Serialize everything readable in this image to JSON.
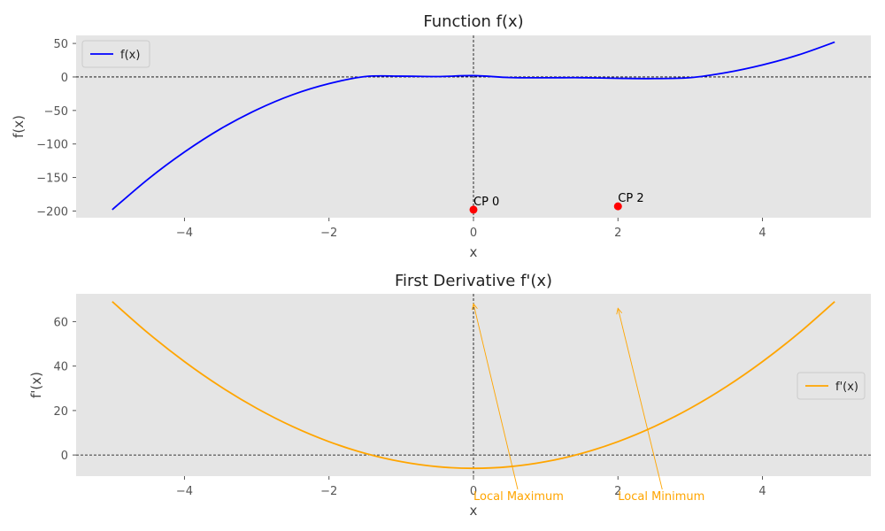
{
  "chart_data": [
    {
      "type": "line",
      "title": "Function f(x)",
      "xlabel": "x",
      "ylabel": "f(x)",
      "xlim": [
        -5.5,
        5.5
      ],
      "ylim": [
        -210,
        62
      ],
      "xticks": [
        -4,
        -2,
        0,
        2,
        4
      ],
      "xtick_labels": [
        "−4",
        "−2",
        "0",
        "2",
        "4"
      ],
      "yticks": [
        50,
        0,
        -50,
        -100,
        -150,
        -200
      ],
      "ytick_labels": [
        "50",
        "0",
        "−50",
        "−100",
        "−150",
        "−200"
      ],
      "grid": false,
      "background": "#e5e5e5",
      "reference_lines": {
        "x": 0,
        "y": 0,
        "style": "dashed",
        "color": "#000000"
      },
      "legend": {
        "location": "upper-left",
        "entries": [
          "f(x)"
        ]
      },
      "series": [
        {
          "name": "f(x)",
          "color": "#0000ff",
          "x": [
            -5,
            -4.5,
            -4,
            -3.5,
            -3,
            -2.5,
            -2,
            -1.5,
            -1,
            -0.5,
            0,
            0.5,
            1,
            1.5,
            2,
            2.5,
            3,
            3.5,
            4,
            4.5,
            5
          ],
          "y": [
            -198,
            -152.1,
            -112,
            -77.4,
            -49,
            -26.4,
            -10,
            0.6,
            1.2,
            0.6,
            2,
            -0.9,
            -1.2,
            -1.1,
            -2,
            -2.4,
            -1,
            6.6,
            18,
            32.9,
            52
          ]
        }
      ],
      "points": [
        {
          "label": "CP 0",
          "x": 0,
          "y": -198,
          "color": "#ff0000"
        },
        {
          "label": "CP 2",
          "x": 2,
          "y": -193,
          "color": "#ff0000"
        }
      ]
    },
    {
      "type": "line",
      "title": "First Derivative f'(x)",
      "xlabel": "x",
      "ylabel": "f'(x)",
      "xlim": [
        -5.5,
        5.5
      ],
      "ylim": [
        -9.5,
        72.5
      ],
      "xticks": [
        -4,
        -2,
        0,
        2,
        4
      ],
      "xtick_labels": [
        "−4",
        "−2",
        "0",
        "2",
        "4"
      ],
      "yticks": [
        60,
        40,
        20,
        0
      ],
      "ytick_labels": [
        "60",
        "40",
        "20",
        "0"
      ],
      "grid": false,
      "background": "#e5e5e5",
      "reference_lines": {
        "x": 0,
        "y": 0,
        "style": "dashed",
        "color": "#000000"
      },
      "legend": {
        "location": "center-right",
        "entries": [
          "f'(x)"
        ]
      },
      "series": [
        {
          "name": "f'(x)",
          "color": "#ffa500",
          "x": [
            -5,
            -4.5,
            -4,
            -3.5,
            -3,
            -2.5,
            -2,
            -1.5,
            -1,
            -0.5,
            0,
            0.5,
            1,
            1.5,
            2,
            2.5,
            3,
            3.5,
            4,
            4.5,
            5
          ],
          "y": [
            69,
            54.75,
            42,
            30.75,
            21,
            12.75,
            6,
            0.75,
            -3,
            -5.25,
            -6,
            -5.25,
            -3,
            0.75,
            6,
            12.75,
            21,
            30.75,
            42,
            54.75,
            69
          ]
        }
      ],
      "annotations": [
        {
          "text": "Local Maximum",
          "point": [
            0,
            68
          ],
          "text_at": [
            0,
            -18
          ],
          "color": "#ffa500"
        },
        {
          "text": "Local Minimum",
          "point": [
            2,
            66
          ],
          "text_at": [
            2,
            -18
          ],
          "color": "#ffa500"
        }
      ]
    }
  ]
}
